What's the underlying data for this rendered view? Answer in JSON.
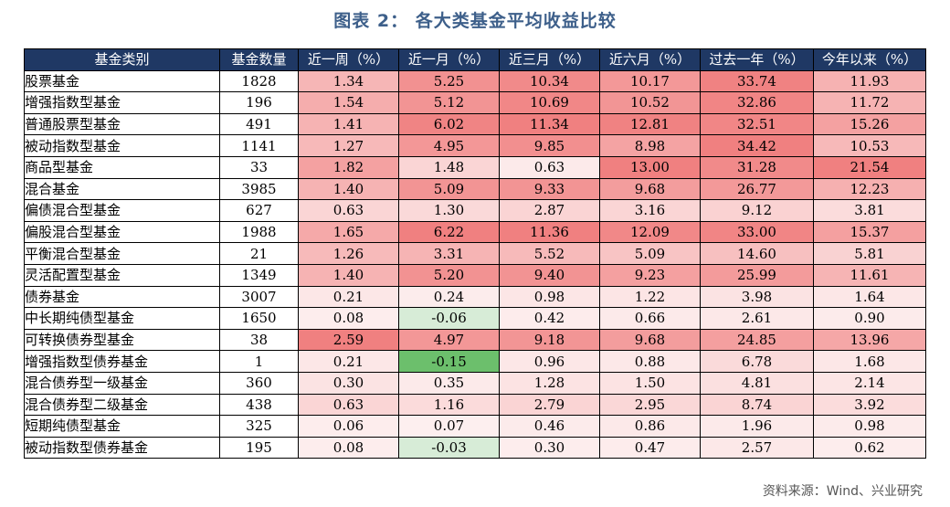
{
  "title": "图表 2： 各大类基金平均收益比较",
  "source": "资料来源：Wind、兴业研究",
  "table": {
    "headers": [
      "基金类别",
      "基金数量",
      "近一周（%）",
      "近一月（%）",
      "近三月（%）",
      "近六月（%）",
      "过去一年（%）",
      "今年以来（%）"
    ],
    "rows": [
      {
        "name": "股票基金",
        "indent": 0,
        "values": [
          "1828",
          "1.34",
          "5.25",
          "10.34",
          "10.17",
          "33.74",
          "11.93"
        ]
      },
      {
        "name": "增强指数型基金",
        "indent": 1,
        "values": [
          "196",
          "1.54",
          "5.12",
          "10.69",
          "10.52",
          "32.86",
          "11.72"
        ]
      },
      {
        "name": "普通股票型基金",
        "indent": 1,
        "values": [
          "491",
          "1.41",
          "6.02",
          "11.34",
          "12.81",
          "32.51",
          "15.26"
        ]
      },
      {
        "name": "被动指数型基金",
        "indent": 1,
        "values": [
          "1141",
          "1.27",
          "4.95",
          "9.85",
          "8.98",
          "34.42",
          "10.53"
        ]
      },
      {
        "name": "商品型基金",
        "indent": 0,
        "values": [
          "33",
          "1.82",
          "1.48",
          "0.63",
          "13.00",
          "31.28",
          "21.54"
        ]
      },
      {
        "name": "混合基金",
        "indent": 0,
        "values": [
          "3985",
          "1.40",
          "5.09",
          "9.33",
          "9.68",
          "26.77",
          "12.23"
        ]
      },
      {
        "name": "偏债混合型基金",
        "indent": 1,
        "values": [
          "627",
          "0.63",
          "1.30",
          "2.87",
          "3.16",
          "9.12",
          "3.81"
        ]
      },
      {
        "name": "偏股混合型基金",
        "indent": 1,
        "values": [
          "1988",
          "1.65",
          "6.22",
          "11.36",
          "12.09",
          "33.00",
          "15.37"
        ]
      },
      {
        "name": "平衡混合型基金",
        "indent": 1,
        "values": [
          "21",
          "1.26",
          "3.31",
          "5.52",
          "5.09",
          "14.60",
          "5.81"
        ]
      },
      {
        "name": "灵活配置型基金",
        "indent": 1,
        "values": [
          "1349",
          "1.40",
          "5.20",
          "9.40",
          "9.23",
          "25.99",
          "11.61"
        ]
      },
      {
        "name": "债券基金",
        "indent": 0,
        "values": [
          "3007",
          "0.21",
          "0.24",
          "0.98",
          "1.22",
          "3.98",
          "1.64"
        ]
      },
      {
        "name": "中长期纯债型基金",
        "indent": 2,
        "values": [
          "1650",
          "0.08",
          "-0.06",
          "0.42",
          "0.66",
          "2.61",
          "0.90"
        ]
      },
      {
        "name": "可转换债券型基金",
        "indent": 2,
        "values": [
          "38",
          "2.59",
          "4.97",
          "9.18",
          "9.68",
          "24.85",
          "13.96"
        ]
      },
      {
        "name": "增强指数型债券基金",
        "indent": 3,
        "values": [
          "1",
          "0.21",
          "-0.15",
          "0.96",
          "0.88",
          "6.78",
          "1.68"
        ]
      },
      {
        "name": "混合债券型一级基金",
        "indent": 3,
        "values": [
          "360",
          "0.30",
          "0.35",
          "1.28",
          "1.50",
          "4.81",
          "2.14"
        ]
      },
      {
        "name": "混合债券型二级基金",
        "indent": 3,
        "values": [
          "438",
          "0.63",
          "1.16",
          "2.79",
          "2.95",
          "8.74",
          "3.92"
        ]
      },
      {
        "name": "短期纯债型基金",
        "indent": 2,
        "values": [
          "325",
          "0.06",
          "0.07",
          "0.46",
          "0.86",
          "1.96",
          "0.98"
        ]
      },
      {
        "name": "被动指数型债券基金",
        "indent": 3,
        "values": [
          "195",
          "0.08",
          "-0.03",
          "0.30",
          "0.47",
          "2.57",
          "0.62"
        ]
      }
    ]
  },
  "colors": {
    "header_bg": "#1f3864",
    "title": "#3d5f8a",
    "heat_low": "#fdf0f0",
    "heat_high": "#f08080",
    "negative_light": "#d7ecd7",
    "negative_strong": "#6cbf6c"
  }
}
